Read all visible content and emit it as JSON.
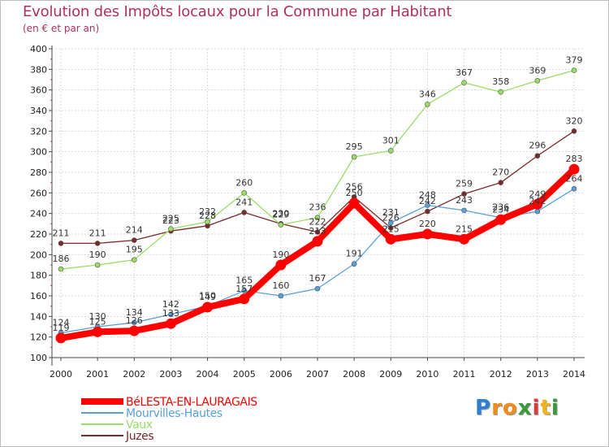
{
  "chart_data": {
    "type": "line",
    "title": "Evolution des Impôts locaux pour la Commune par Habitant",
    "subtitle": "(en € et par an)",
    "xlabel": "",
    "ylabel": "",
    "ylim": [
      100,
      400
    ],
    "yticks": [
      100,
      120,
      140,
      160,
      180,
      200,
      220,
      240,
      260,
      280,
      300,
      320,
      340,
      360,
      380,
      400
    ],
    "x": [
      "2000",
      "2001",
      "2002",
      "2003",
      "2004",
      "2005",
      "2006",
      "2007",
      "2008",
      "2009",
      "2010",
      "2011",
      "2012",
      "2013",
      "2014"
    ],
    "grid": true,
    "legend_position": "bottom-left",
    "series": [
      {
        "name": "BéLESTA-EN-LAURAGAIS",
        "color": "#ff0000",
        "highlight": true,
        "values": [
          119,
          125,
          126,
          133,
          149,
          157,
          190,
          213,
          250,
          215,
          220,
          215,
          234,
          249,
          283
        ]
      },
      {
        "name": "Mourvilles-Hautes",
        "color": "#5aa0d8",
        "highlight": false,
        "values": [
          124,
          130,
          134,
          142,
          150,
          165,
          160,
          167,
          191,
          231,
          248,
          243,
          236,
          242,
          264
        ]
      },
      {
        "name": "Vaux",
        "color": "#99dd66",
        "highlight": false,
        "values": [
          186,
          190,
          195,
          225,
          232,
          260,
          229,
          236,
          295,
          301,
          346,
          367,
          358,
          369,
          379
        ]
      },
      {
        "name": "Juzes",
        "color": "#7a2a2a",
        "highlight": false,
        "values": [
          211,
          211,
          214,
          223,
          228,
          241,
          230,
          222,
          256,
          226,
          242,
          259,
          270,
          296,
          320
        ]
      }
    ]
  },
  "brand": {
    "letters": [
      "P",
      "r",
      "o",
      "x",
      "i",
      "t",
      "i"
    ],
    "colors": [
      "#2d7fd3",
      "#f08c1a",
      "#f08c1a",
      "#3a9a3a",
      "#d63c3c",
      "#f0b51a",
      "#3a9a3a"
    ]
  }
}
